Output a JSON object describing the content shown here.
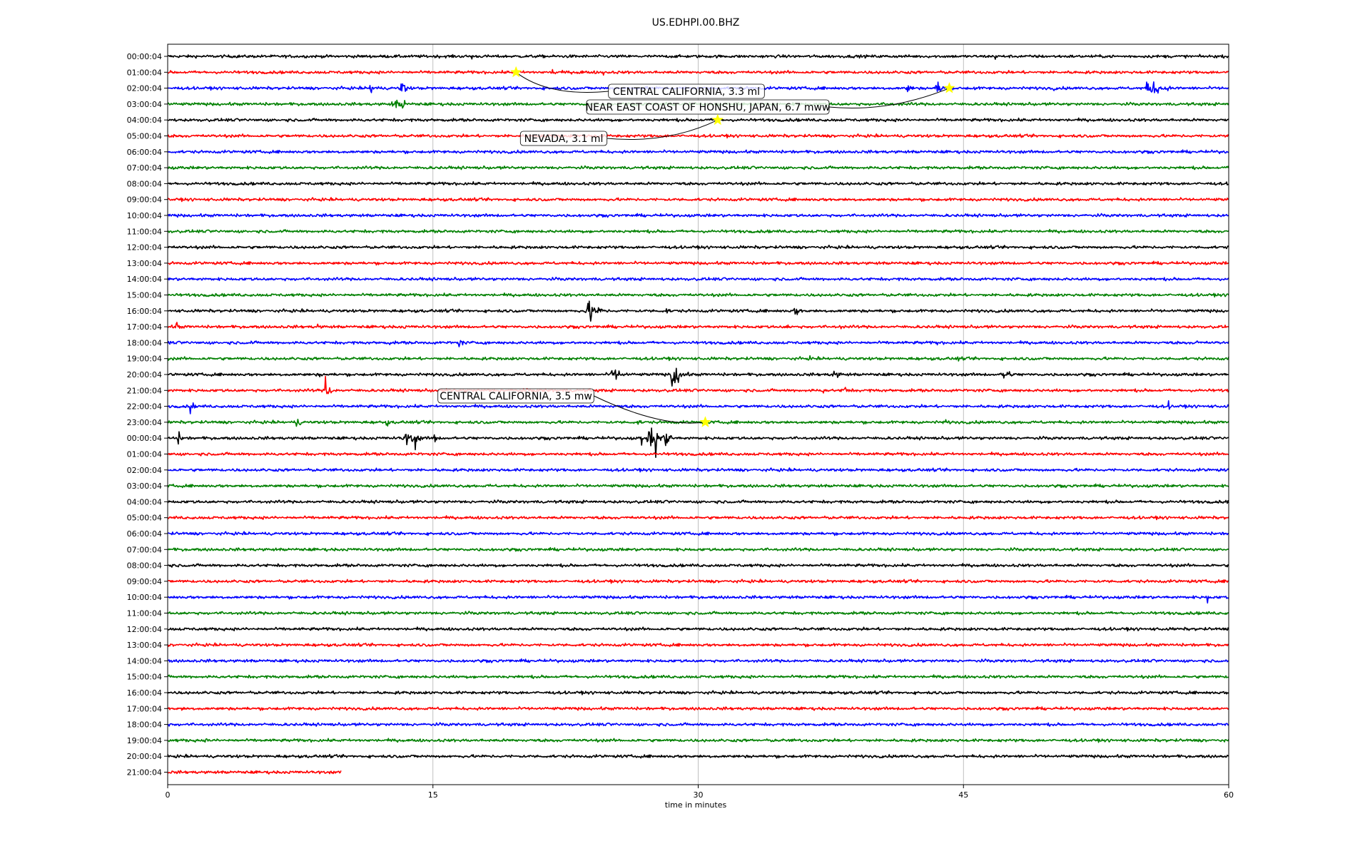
{
  "chart_data": {
    "type": "line",
    "title": "US.EDHPI.00.BHZ",
    "xlabel": "time in minutes",
    "ylabel": "",
    "xlim": [
      0,
      60
    ],
    "x_ticks": [
      0,
      15,
      30,
      45,
      60
    ],
    "x_tick_labels": [
      "0",
      "15",
      "30",
      "45",
      "60"
    ],
    "grid": "vertical lines at x ticks",
    "row_colors": [
      "#000000",
      "#ff0000",
      "#0000ff",
      "#008000"
    ],
    "rows": [
      {
        "label": "00:00:04",
        "end_minute": 60
      },
      {
        "label": "01:00:04",
        "end_minute": 60
      },
      {
        "label": "02:00:04",
        "end_minute": 60
      },
      {
        "label": "03:00:04",
        "end_minute": 60
      },
      {
        "label": "04:00:04",
        "end_minute": 60
      },
      {
        "label": "05:00:04",
        "end_minute": 60
      },
      {
        "label": "06:00:04",
        "end_minute": 60
      },
      {
        "label": "07:00:04",
        "end_minute": 60
      },
      {
        "label": "08:00:04",
        "end_minute": 60
      },
      {
        "label": "09:00:04",
        "end_minute": 60
      },
      {
        "label": "10:00:04",
        "end_minute": 60
      },
      {
        "label": "11:00:04",
        "end_minute": 60
      },
      {
        "label": "12:00:04",
        "end_minute": 60
      },
      {
        "label": "13:00:04",
        "end_minute": 60
      },
      {
        "label": "14:00:04",
        "end_minute": 60
      },
      {
        "label": "15:00:04",
        "end_minute": 60
      },
      {
        "label": "16:00:04",
        "end_minute": 60
      },
      {
        "label": "17:00:04",
        "end_minute": 60
      },
      {
        "label": "18:00:04",
        "end_minute": 60
      },
      {
        "label": "19:00:04",
        "end_minute": 60
      },
      {
        "label": "20:00:04",
        "end_minute": 60
      },
      {
        "label": "21:00:04",
        "end_minute": 60
      },
      {
        "label": "22:00:04",
        "end_minute": 60
      },
      {
        "label": "23:00:04",
        "end_minute": 60
      },
      {
        "label": "00:00:04",
        "end_minute": 60
      },
      {
        "label": "01:00:04",
        "end_minute": 60
      },
      {
        "label": "02:00:04",
        "end_minute": 60
      },
      {
        "label": "03:00:04",
        "end_minute": 60
      },
      {
        "label": "04:00:04",
        "end_minute": 60
      },
      {
        "label": "05:00:04",
        "end_minute": 60
      },
      {
        "label": "06:00:04",
        "end_minute": 60
      },
      {
        "label": "07:00:04",
        "end_minute": 60
      },
      {
        "label": "08:00:04",
        "end_minute": 60
      },
      {
        "label": "09:00:04",
        "end_minute": 60
      },
      {
        "label": "10:00:04",
        "end_minute": 60
      },
      {
        "label": "11:00:04",
        "end_minute": 60
      },
      {
        "label": "12:00:04",
        "end_minute": 60
      },
      {
        "label": "13:00:04",
        "end_minute": 60
      },
      {
        "label": "14:00:04",
        "end_minute": 60
      },
      {
        "label": "15:00:04",
        "end_minute": 60
      },
      {
        "label": "16:00:04",
        "end_minute": 60
      },
      {
        "label": "17:00:04",
        "end_minute": 60
      },
      {
        "label": "18:00:04",
        "end_minute": 60
      },
      {
        "label": "19:00:04",
        "end_minute": 60
      },
      {
        "label": "20:00:04",
        "end_minute": 60
      },
      {
        "label": "21:00:04",
        "end_minute": 9.8
      }
    ],
    "bursts": [
      {
        "row": 0,
        "t": 17.2,
        "amp": 0.25,
        "dur": 0.3
      },
      {
        "row": 0,
        "t": 46.8,
        "amp": 0.3,
        "dur": 0.4
      },
      {
        "row": 1,
        "t": 21.8,
        "amp": 0.35,
        "dur": 0.8
      },
      {
        "row": 1,
        "t": 23.3,
        "amp": 0.3,
        "dur": 0.6
      },
      {
        "row": 1,
        "t": 24.6,
        "amp": 0.25,
        "dur": 0.5
      },
      {
        "row": 2,
        "t": 11.5,
        "amp": 0.45,
        "dur": 1.0
      },
      {
        "row": 2,
        "t": 13.2,
        "amp": 0.55,
        "dur": 1.0
      },
      {
        "row": 2,
        "t": 41.8,
        "amp": 0.35,
        "dur": 1.0
      },
      {
        "row": 2,
        "t": 43.5,
        "amp": 0.5,
        "dur": 1.2
      },
      {
        "row": 2,
        "t": 45.5,
        "amp": 0.25,
        "dur": 0.6
      },
      {
        "row": 2,
        "t": 50.0,
        "amp": 0.25,
        "dur": 0.6
      },
      {
        "row": 2,
        "t": 55.5,
        "amp": 0.6,
        "dur": 2.2
      },
      {
        "row": 3,
        "t": 12.8,
        "amp": 0.4,
        "dur": 1.3
      },
      {
        "row": 3,
        "t": 13.3,
        "amp": 0.8,
        "dur": 0.3
      },
      {
        "row": 6,
        "t": 9.8,
        "amp": 0.2,
        "dur": 0.2
      },
      {
        "row": 16,
        "t": 23.8,
        "amp": 0.6,
        "dur": 1.8
      },
      {
        "row": 16,
        "t": 28.2,
        "amp": 0.35,
        "dur": 0.4
      },
      {
        "row": 16,
        "t": 35.5,
        "amp": 0.35,
        "dur": 1.0
      },
      {
        "row": 17,
        "t": 0.5,
        "amp": 0.4,
        "dur": 0.5
      },
      {
        "row": 17,
        "t": 8.5,
        "amp": 0.35,
        "dur": 0.4
      },
      {
        "row": 17,
        "t": 13.3,
        "amp": 0.25,
        "dur": 0.4
      },
      {
        "row": 17,
        "t": 24.7,
        "amp": 0.25,
        "dur": 0.4
      },
      {
        "row": 17,
        "t": 35.0,
        "amp": 0.25,
        "dur": 0.6
      },
      {
        "row": 17,
        "t": 38.0,
        "amp": 0.3,
        "dur": 0.3
      },
      {
        "row": 18,
        "t": 4.7,
        "amp": 0.2,
        "dur": 0.3
      },
      {
        "row": 18,
        "t": 12.5,
        "amp": 0.25,
        "dur": 0.4
      },
      {
        "row": 18,
        "t": 16.5,
        "amp": 0.4,
        "dur": 0.6
      },
      {
        "row": 18,
        "t": 43.5,
        "amp": 0.2,
        "dur": 0.4
      },
      {
        "row": 18,
        "t": 58.2,
        "amp": 0.3,
        "dur": 0.4
      },
      {
        "row": 19,
        "t": 36.3,
        "amp": 0.2,
        "dur": 0.4
      },
      {
        "row": 19,
        "t": 44.7,
        "amp": 0.2,
        "dur": 0.5
      },
      {
        "row": 20,
        "t": 8.6,
        "amp": 0.2,
        "dur": 0.3
      },
      {
        "row": 20,
        "t": 25.2,
        "amp": 0.5,
        "dur": 1.6
      },
      {
        "row": 20,
        "t": 28.6,
        "amp": 1.0,
        "dur": 1.2
      },
      {
        "row": 20,
        "t": 37.6,
        "amp": 0.35,
        "dur": 1.4
      },
      {
        "row": 20,
        "t": 47.3,
        "amp": 1.0,
        "dur": 0.6
      },
      {
        "row": 21,
        "t": 9.0,
        "amp": 0.45,
        "dur": 1.0
      },
      {
        "row": 21,
        "t": 37.1,
        "amp": 0.35,
        "dur": 0.4
      },
      {
        "row": 21,
        "t": 38.3,
        "amp": 0.45,
        "dur": 0.6
      },
      {
        "row": 22,
        "t": 1.3,
        "amp": 0.9,
        "dur": 0.3
      },
      {
        "row": 22,
        "t": 56.6,
        "amp": 0.3,
        "dur": 0.3
      },
      {
        "row": 23,
        "t": 7.3,
        "amp": 0.5,
        "dur": 0.5
      },
      {
        "row": 23,
        "t": 12.4,
        "amp": 0.3,
        "dur": 0.6
      },
      {
        "row": 23,
        "t": 26.6,
        "amp": 0.25,
        "dur": 0.6
      },
      {
        "row": 23,
        "t": 44.0,
        "amp": 0.25,
        "dur": 0.5
      },
      {
        "row": 24,
        "t": 0.6,
        "amp": 0.45,
        "dur": 0.6
      },
      {
        "row": 24,
        "t": 13.5,
        "amp": 0.4,
        "dur": 2.5
      },
      {
        "row": 24,
        "t": 15.1,
        "amp": 0.6,
        "dur": 0.3
      },
      {
        "row": 24,
        "t": 27.3,
        "amp": 0.7,
        "dur": 2.0
      },
      {
        "row": 24,
        "t": 28.2,
        "amp": 0.9,
        "dur": 0.6
      },
      {
        "row": 27,
        "t": 18.2,
        "amp": 0.2,
        "dur": 0.3
      },
      {
        "row": 34,
        "t": 58.8,
        "amp": 0.6,
        "dur": 0.2
      },
      {
        "row": 41,
        "t": 0.8,
        "amp": 0.2,
        "dur": 0.2
      },
      {
        "row": 43,
        "t": 2.2,
        "amp": 0.2,
        "dur": 0.3
      }
    ],
    "spikes": [
      {
        "row": 21,
        "t": 8.9,
        "amp": 1.1
      },
      {
        "row": 24,
        "t": 14.0,
        "amp": -0.9
      },
      {
        "row": 24,
        "t": 26.8,
        "amp": -0.55
      },
      {
        "row": 24,
        "t": 27.6,
        "amp": -1.5
      },
      {
        "row": 20,
        "t": 28.5,
        "amp": -0.9
      },
      {
        "row": 16,
        "t": 23.9,
        "amp": -0.8
      }
    ],
    "events": [
      {
        "label": "CENTRAL CALIFORNIA, 3.3 ml",
        "row": 1,
        "t": 19.7
      },
      {
        "label": "NEAR EAST COAST OF HONSHU, JAPAN, 6.7 mww",
        "row": 2,
        "t": 44.2
      },
      {
        "label": "NEVADA, 3.1 ml",
        "row": 4,
        "t": 31.1
      },
      {
        "label": "CENTRAL CALIFORNIA, 3.5 mw",
        "row": 23,
        "t": 30.4
      }
    ]
  }
}
